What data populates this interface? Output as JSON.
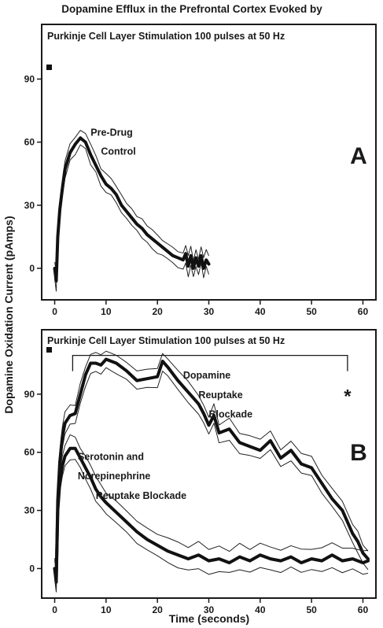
{
  "figure": {
    "title": "Dopamine Efflux in the Prefrontal Cortex Evoked by",
    "ylabel": "Dopamine Oxidation Current (pAmps)",
    "xlabel": "Time (seconds)"
  },
  "chart_data": [
    {
      "type": "line",
      "panel": "A",
      "subtitle": "Purkinje Cell Layer Stimulation 100 pulses at 50 Hz",
      "xlim": [
        -1,
        61
      ],
      "ylim": [
        -12,
        113
      ],
      "xticks": [
        0,
        10,
        20,
        30,
        40,
        50,
        60
      ],
      "yticks": [
        0,
        30,
        60,
        90
      ],
      "stimulus_marker": {
        "x": 0,
        "y": 95
      },
      "series": [
        {
          "name": "Pre-Drug Control",
          "sem": 4,
          "x": [
            0,
            0.3,
            0.6,
            1,
            1.5,
            2,
            3,
            4,
            5,
            6,
            7,
            8,
            9,
            10,
            11,
            12,
            13,
            14,
            15,
            16,
            17,
            18,
            19,
            20,
            21,
            22,
            23,
            24,
            25,
            25.5,
            26,
            26.5,
            27,
            27.5,
            28,
            28.5,
            29,
            29.5,
            30
          ],
          "y": [
            0,
            -6,
            15,
            28,
            38,
            47,
            55,
            59,
            62,
            60,
            54,
            49,
            44,
            40,
            38,
            35,
            30,
            27,
            24,
            21,
            19,
            16,
            14,
            12,
            10,
            8,
            6,
            5,
            4,
            7,
            1,
            6,
            0,
            5,
            1,
            6,
            0,
            4,
            2
          ]
        }
      ],
      "annotations": [
        {
          "text": "Pre-Drug",
          "x": 7,
          "y": 63
        },
        {
          "text": "Control",
          "x": 9,
          "y": 54
        }
      ],
      "panel_label": "A"
    },
    {
      "type": "line",
      "panel": "B",
      "subtitle": "Purkinje Cell Layer Stimulation 100 pulses at 50 Hz",
      "xlim": [
        -1,
        61
      ],
      "ylim": [
        -12,
        120
      ],
      "xticks": [
        0,
        10,
        20,
        30,
        40,
        50,
        60
      ],
      "yticks": [
        0,
        30,
        60,
        90
      ],
      "stimulus_marker": {
        "x": 0,
        "y": 105
      },
      "significance_bracket": {
        "x_start": 3.5,
        "x_end": 57,
        "y": 110,
        "label": "*"
      },
      "series": [
        {
          "name": "Dopamine Reuptake Blockade",
          "sem": 5,
          "x": [
            0,
            0.3,
            0.6,
            1,
            1.5,
            2,
            3,
            4,
            5,
            6,
            7,
            8,
            9,
            10,
            12,
            14,
            16,
            18,
            20,
            21,
            22,
            24,
            26,
            28,
            29,
            30,
            31,
            32,
            34,
            36,
            38,
            40,
            42,
            44,
            46,
            48,
            50,
            52,
            54,
            56,
            58,
            59,
            60,
            61
          ],
          "y": [
            0,
            -7,
            35,
            55,
            68,
            75,
            79,
            80,
            90,
            100,
            106,
            106,
            105,
            108,
            106,
            102,
            97,
            98,
            99,
            107,
            104,
            97,
            91,
            85,
            80,
            74,
            79,
            70,
            72,
            65,
            63,
            61,
            66,
            57,
            61,
            54,
            52,
            44,
            36,
            30,
            18,
            14,
            8,
            5
          ]
        },
        {
          "name": "Serotonin and Norepinephrine Reuptake Blockade",
          "sem": 6,
          "x": [
            0,
            0.3,
            0.6,
            1,
            1.5,
            2,
            3,
            4,
            5,
            6,
            7,
            8,
            9,
            10,
            12,
            14,
            16,
            18,
            20,
            22,
            24,
            26,
            28,
            30,
            32,
            34,
            36,
            38,
            40,
            42,
            44,
            46,
            48,
            50,
            52,
            54,
            56,
            58,
            60,
            61
          ],
          "y": [
            0,
            -5,
            30,
            45,
            53,
            58,
            62,
            62,
            57,
            52,
            47,
            41,
            37,
            34,
            29,
            24,
            19,
            15,
            12,
            9,
            7,
            5,
            7,
            4,
            5,
            3,
            6,
            4,
            7,
            5,
            4,
            6,
            3,
            5,
            4,
            7,
            4,
            5,
            3,
            4
          ]
        }
      ],
      "annotations": [
        {
          "text": "Dopamine",
          "x": 25,
          "y": 98
        },
        {
          "text": "Reuptake",
          "x": 28,
          "y": 88
        },
        {
          "text": "Blockade",
          "x": 30,
          "y": 78
        },
        {
          "text": "Serotonin and",
          "x": 4.5,
          "y": 56
        },
        {
          "text": "Norepinephrine",
          "x": 4.5,
          "y": 46
        },
        {
          "text": "Reuptake Blockade",
          "x": 8,
          "y": 36
        }
      ],
      "panel_label": "B"
    }
  ]
}
